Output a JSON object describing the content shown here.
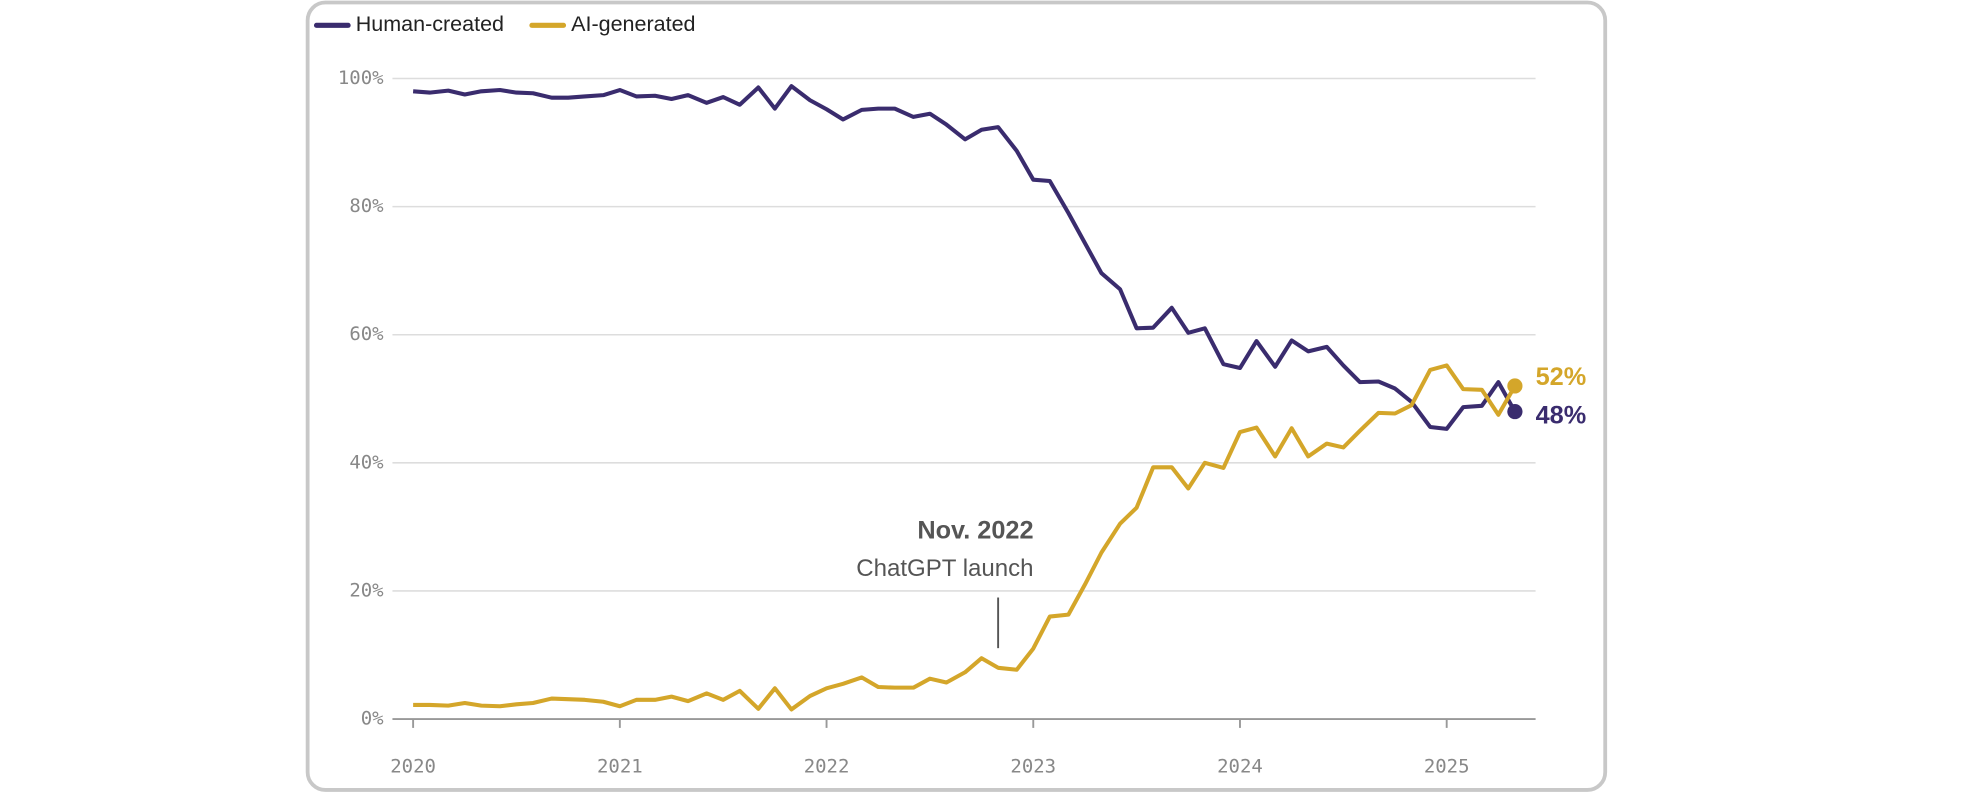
{
  "chart_data": {
    "type": "line",
    "x": [
      2020,
      2020.08,
      2020.17,
      2020.25,
      2020.33,
      2020.42,
      2020.5,
      2020.58,
      2020.67,
      2020.75,
      2020.83,
      2020.92,
      2021,
      2021.08,
      2021.17,
      2021.25,
      2021.33,
      2021.42,
      2021.5,
      2021.58,
      2021.67,
      2021.75,
      2021.83,
      2021.92,
      2022,
      2022.08,
      2022.17,
      2022.25,
      2022.33,
      2022.42,
      2022.5,
      2022.58,
      2022.67,
      2022.75,
      2022.83,
      2022.92,
      2023,
      2023.08,
      2023.17,
      2023.25,
      2023.33,
      2023.42,
      2023.5,
      2023.58,
      2023.67,
      2023.75,
      2023.83,
      2023.92,
      2024,
      2024.08,
      2024.17,
      2024.25,
      2024.33,
      2024.42,
      2024.5,
      2024.58,
      2024.67,
      2024.75,
      2024.83,
      2024.92,
      2025,
      2025.08,
      2025.17,
      2025.25,
      2025.33
    ],
    "series": [
      {
        "name": "Human-created",
        "color": "#3a2c6e",
        "values": [
          98,
          97.8,
          98.1,
          97.5,
          98,
          98.2,
          97.8,
          97.7,
          97,
          97,
          97.2,
          97.4,
          98.2,
          97.2,
          97.3,
          96.8,
          97.4,
          96.2,
          97.1,
          95.9,
          98.6,
          95.3,
          98.8,
          96.6,
          95.2,
          93.6,
          95.1,
          95.3,
          95.3,
          94,
          94.5,
          92.8,
          90.5,
          92,
          92.4,
          88.7,
          84.2,
          84,
          79,
          74.3,
          69.6,
          67.1,
          61,
          61.1,
          64.2,
          60.3,
          61,
          55.4,
          54.8,
          59,
          55,
          59.1,
          57.4,
          58.1,
          55.2,
          52.6,
          52.7,
          51.6,
          49.5,
          45.6,
          45.3,
          48.7,
          48.9,
          52.6,
          48
        ],
        "value_labels": [
          null,
          null,
          null,
          null,
          null,
          null,
          null,
          null,
          null,
          null,
          null,
          null,
          null,
          null,
          null,
          null,
          null,
          null,
          null,
          null,
          null,
          null,
          null,
          null,
          null,
          null,
          null,
          null,
          null,
          null,
          null,
          null,
          null,
          null,
          null,
          null,
          null,
          null,
          null,
          null,
          null,
          null,
          null,
          null,
          null,
          null,
          null,
          null,
          null,
          null,
          null,
          null,
          null,
          null,
          null,
          null,
          null,
          null,
          null,
          null,
          null,
          null,
          null,
          null,
          "48%"
        ]
      },
      {
        "name": "AI-generated",
        "color": "#d4a62a",
        "values": [
          2.2,
          2.2,
          2.1,
          2.5,
          2.1,
          2,
          2.3,
          2.5,
          3.2,
          3.1,
          3,
          2.7,
          2,
          3,
          3,
          3.5,
          2.8,
          4,
          3,
          4.4,
          1.6,
          4.8,
          1.5,
          3.6,
          4.8,
          5.5,
          6.5,
          5,
          4.9,
          4.9,
          6.3,
          5.7,
          7.3,
          9.5,
          8,
          7.7,
          11,
          16,
          16.3,
          21,
          26,
          30.5,
          33,
          39.3,
          39.3,
          36,
          40,
          39.2,
          44.8,
          45.5,
          41,
          45.4,
          41,
          43,
          42.4,
          45,
          47.8,
          47.7,
          49,
          54.5,
          55.2,
          51.5,
          51.4,
          47.5,
          52
        ],
        "value_labels": [
          null,
          null,
          null,
          null,
          null,
          null,
          null,
          null,
          null,
          null,
          null,
          null,
          null,
          null,
          null,
          null,
          null,
          null,
          null,
          null,
          null,
          null,
          null,
          null,
          null,
          null,
          null,
          null,
          null,
          null,
          null,
          null,
          null,
          null,
          null,
          null,
          null,
          null,
          null,
          null,
          null,
          null,
          null,
          null,
          null,
          null,
          null,
          null,
          null,
          null,
          null,
          null,
          null,
          null,
          null,
          null,
          null,
          null,
          null,
          null,
          null,
          null,
          null,
          null,
          "52%"
        ]
      }
    ],
    "xlim": [
      2019.9,
      2025.43
    ],
    "xticks": [
      2020,
      2021,
      2022,
      2023,
      2024,
      2025
    ],
    "ylim": [
      0,
      100
    ],
    "yticks": [
      {
        "value": 0,
        "label": "0%"
      },
      {
        "value": 20,
        "label": "20%"
      },
      {
        "value": 40,
        "label": "40%"
      },
      {
        "value": 60,
        "label": "60%"
      },
      {
        "value": 80,
        "label": "80%"
      },
      {
        "value": 100,
        "label": "100%"
      }
    ],
    "grid": true,
    "annotation": {
      "x": 2022.83,
      "title": "Nov. 2022",
      "text": "ChatGPT launch"
    }
  }
}
